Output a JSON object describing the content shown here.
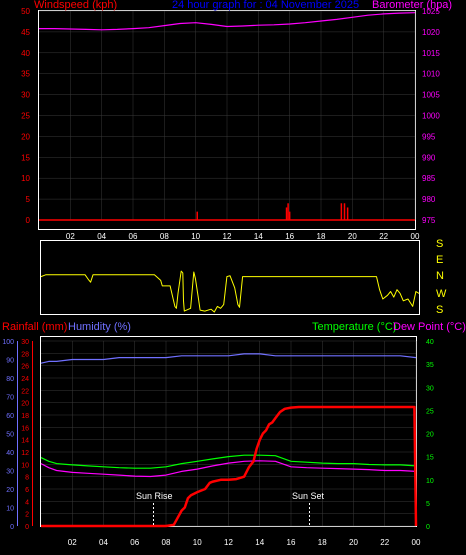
{
  "colors": {
    "background": "#000000",
    "panel_border": "#ffffff",
    "grid": "#3a3a3a",
    "windspeed": "#ff0000",
    "barometer": "#ff00ff",
    "direction": "#ffff00",
    "title": "#0000ff",
    "rainfall": "#ff0000",
    "humidity": "#7070ff",
    "temperature": "#00ff00",
    "dewpoint": "#ff00ff",
    "tick_text": "#ffffff",
    "sun_marker": "#ffffff"
  },
  "header": {
    "title": "24 hour graph for : 04 November 2025",
    "left_label": "Windspeed (kph)",
    "right_label": "Barometer (hpa)"
  },
  "lower_header": {
    "rain_label": "Rainfall (mm)",
    "humidity_label": "Humidity (%)",
    "temp_label": "Temperature (°C)",
    "dew_label": "Dew Point (°C)"
  },
  "sun": {
    "rise_label": "Sun Rise",
    "set_label": "Sun Set"
  },
  "direction_labels": [
    "S",
    "E",
    "N",
    "W",
    "S"
  ],
  "chart_data": [
    {
      "type": "line",
      "title": "24 hour graph for : 04 November 2025",
      "x_ticks": [
        "02",
        "04",
        "06",
        "08",
        "10",
        "12",
        "14",
        "16",
        "18",
        "20",
        "22",
        "00"
      ],
      "xlim": [
        0,
        24
      ],
      "y_left": {
        "label": "Windspeed (kph)",
        "ylim": [
          0,
          50
        ],
        "ticks": [
          "0",
          "5",
          "10",
          "15",
          "20",
          "25",
          "30",
          "35",
          "40",
          "45",
          "50"
        ]
      },
      "y_right": {
        "label": "Barometer (hpa)",
        "ylim": [
          975,
          1025
        ],
        "ticks": [
          "975",
          "980",
          "985",
          "990",
          "995",
          "1000",
          "1005",
          "1010",
          "1015",
          "1020",
          "1025"
        ]
      },
      "series": [
        {
          "name": "Barometer (hpa)",
          "axis": "right",
          "x": [
            0,
            1,
            2,
            3,
            4,
            5,
            6,
            7,
            8,
            9,
            10,
            11,
            12,
            13,
            14,
            15,
            16,
            17,
            18,
            19,
            20,
            21,
            22,
            23,
            24
          ],
          "y": [
            1020.8,
            1020.8,
            1020.7,
            1020.6,
            1020.5,
            1020.6,
            1020.8,
            1021.0,
            1021.5,
            1022.0,
            1022.2,
            1021.8,
            1021.3,
            1021.4,
            1021.6,
            1021.7,
            1021.9,
            1022.2,
            1022.6,
            1023.0,
            1023.5,
            1024.0,
            1024.3,
            1024.5,
            1024.6
          ]
        },
        {
          "name": "Windspeed (kph)",
          "axis": "left",
          "style": "spikes",
          "x": [
            10.1,
            15.8,
            15.9,
            16.0,
            19.3,
            19.5,
            19.7
          ],
          "y": [
            2,
            3,
            4,
            2,
            4,
            4,
            3
          ]
        }
      ]
    },
    {
      "type": "line",
      "x_ticks": [
        "02",
        "04",
        "06",
        "08",
        "10",
        "12",
        "14",
        "16",
        "18",
        "20",
        "22",
        "00"
      ],
      "xlim": [
        0,
        24
      ],
      "ylim": [
        0,
        360
      ],
      "series": [
        {
          "x": [
            0,
            0.3,
            2.8,
            3.0,
            3.15,
            3.3,
            7.2,
            7.6,
            7.7,
            8.2,
            8.5,
            8.6,
            8.7,
            8.9,
            9.0,
            9.05,
            9.1,
            9.5,
            9.7,
            9.8,
            10.0,
            10.1,
            10.4,
            10.8,
            11.0,
            11.2,
            11.4,
            11.6,
            11.8,
            12.0,
            12.3,
            12.5,
            12.6,
            12.8,
            21.3,
            21.5,
            21.7,
            22.0,
            22.2,
            22.4,
            22.6,
            22.8,
            23.0,
            23.3,
            23.6,
            23.8,
            24
          ],
          "y": [
            190,
            200,
            200,
            175,
            160,
            200,
            200,
            170,
            140,
            140,
            30,
            20,
            100,
            220,
            210,
            60,
            5,
            20,
            215,
            180,
            70,
            10,
            5,
            15,
            0,
            30,
            20,
            40,
            190,
            195,
            130,
            40,
            25,
            190,
            190,
            120,
            70,
            90,
            110,
            80,
            120,
            100,
            60,
            70,
            30,
            110,
            100
          ]
        }
      ]
    },
    {
      "type": "line",
      "x_ticks": [
        "02",
        "04",
        "06",
        "08",
        "10",
        "12",
        "14",
        "16",
        "18",
        "20",
        "22",
        "00"
      ],
      "xlim": [
        0,
        24
      ],
      "y_rain": {
        "label": "Rainfall (mm)",
        "ylim": [
          0,
          30
        ],
        "ticks": [
          "0",
          "2",
          "4",
          "6",
          "8",
          "10",
          "12",
          "14",
          "16",
          "18",
          "20",
          "22",
          "24",
          "26",
          "28",
          "30"
        ]
      },
      "y_humidity": {
        "label": "Humidity (%)",
        "ylim": [
          0,
          100
        ],
        "ticks": [
          "0",
          "10",
          "20",
          "30",
          "40",
          "50",
          "60",
          "70",
          "80",
          "90",
          "100"
        ]
      },
      "y_temp": {
        "label": "Temperature (°C)",
        "ylim": [
          0,
          40
        ],
        "ticks": [
          "0",
          "5",
          "10",
          "15",
          "20",
          "25",
          "30",
          "35",
          "40"
        ]
      },
      "series": [
        {
          "name": "Humidity (%)",
          "axis": "humidity",
          "x": [
            0,
            0.5,
            1,
            2,
            3,
            4,
            5,
            6,
            7,
            8,
            9,
            10,
            11,
            12,
            13,
            14,
            15,
            16,
            17,
            18,
            19,
            20,
            21,
            22,
            23,
            24
          ],
          "y": [
            88,
            89,
            89,
            90,
            90,
            90,
            91,
            91,
            91,
            91,
            92,
            92,
            92,
            92,
            93,
            93,
            92,
            92,
            92,
            92,
            92,
            92,
            92,
            92,
            92,
            91
          ]
        },
        {
          "name": "Temperature (°C)",
          "axis": "temp",
          "x": [
            0,
            0.5,
            1,
            2,
            3,
            4,
            5,
            6,
            7,
            8,
            9,
            10,
            11,
            12,
            13,
            14,
            15,
            16,
            17,
            18,
            19,
            20,
            21,
            22,
            23,
            24
          ],
          "y": [
            14.8,
            14.0,
            13.5,
            13.2,
            13.0,
            12.8,
            12.6,
            12.5,
            12.5,
            12.8,
            13.5,
            14.0,
            14.5,
            15.0,
            15.3,
            15.3,
            15.2,
            14.0,
            13.8,
            13.6,
            13.5,
            13.5,
            13.3,
            13.2,
            13.2,
            13.0
          ]
        },
        {
          "name": "Dew Point (°C)",
          "axis": "temp",
          "x": [
            0,
            0.5,
            1,
            2,
            3,
            4,
            5,
            6,
            7,
            8,
            9,
            10,
            11,
            12,
            13,
            14,
            15,
            16,
            17,
            18,
            19,
            20,
            21,
            22,
            23,
            24
          ],
          "y": [
            13.5,
            12.6,
            12.0,
            11.6,
            11.4,
            11.2,
            11.0,
            10.8,
            10.7,
            11.0,
            11.8,
            12.3,
            13.0,
            13.6,
            14.0,
            14.1,
            14.0,
            12.8,
            12.6,
            12.5,
            12.4,
            12.3,
            12.2,
            12.0,
            12.0,
            11.8
          ]
        },
        {
          "name": "Rainfall (mm)",
          "axis": "rain",
          "x": [
            0,
            1,
            2,
            3,
            4,
            5,
            6,
            7,
            8,
            8.5,
            9.0,
            9.2,
            9.4,
            9.6,
            10.0,
            10.5,
            10.8,
            11.0,
            11.5,
            12.0,
            12.5,
            13.0,
            13.3,
            13.6,
            13.8,
            14.0,
            14.2,
            14.4,
            14.6,
            14.8,
            15.0,
            15.3,
            15.6,
            16.0,
            16.5,
            17.0,
            18.0,
            19.0,
            20.0,
            21.0,
            22.0,
            23.0,
            23.9,
            24.0
          ],
          "y": [
            0,
            0,
            0,
            0,
            0,
            0,
            0,
            0,
            0,
            0.2,
            2.5,
            3.0,
            4.5,
            5.0,
            5.5,
            6.0,
            7.0,
            7.2,
            7.5,
            7.5,
            7.6,
            8.0,
            9.5,
            10.5,
            12.5,
            14.0,
            15.0,
            15.5,
            16.5,
            16.8,
            17.5,
            18.5,
            19.0,
            19.2,
            19.3,
            19.3,
            19.3,
            19.3,
            19.3,
            19.3,
            19.3,
            19.3,
            19.3,
            0
          ]
        }
      ]
    }
  ]
}
